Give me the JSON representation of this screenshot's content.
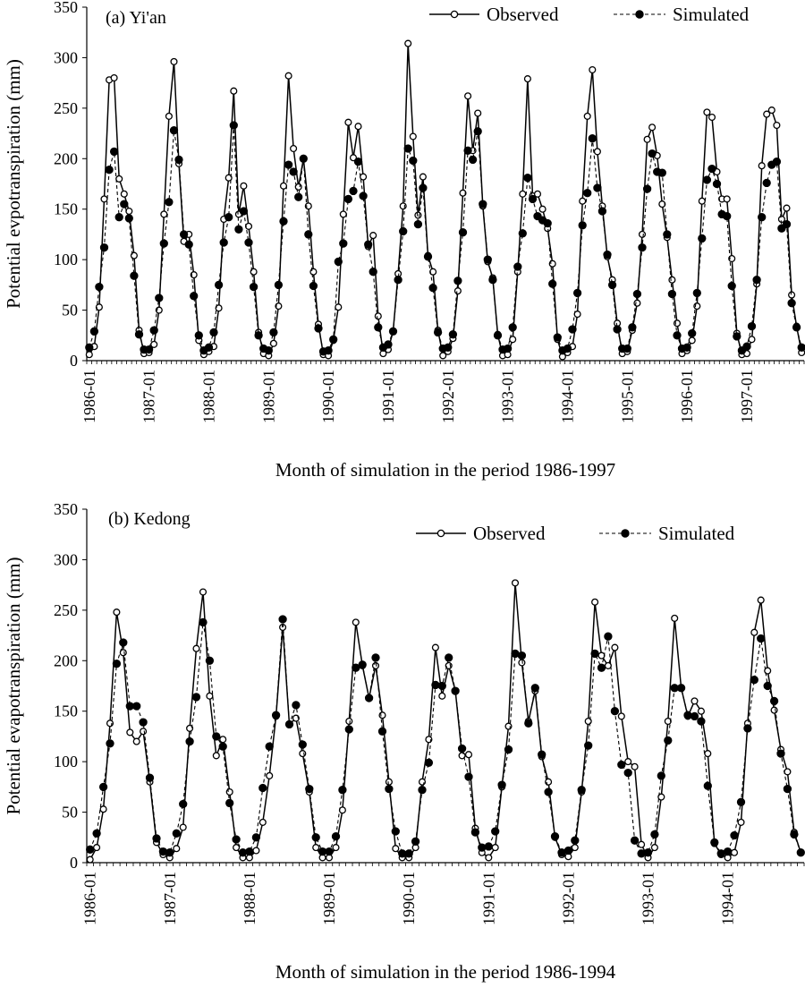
{
  "chart_data": [
    {
      "type": "line",
      "panel_label": "(a) Yi'an",
      "xlabel": "Month of simulation in the period 1986-1997",
      "ylabel": "Potential evpotranspiration (mm)",
      "ylim": [
        0,
        350
      ],
      "yticks": [
        0,
        50,
        100,
        150,
        200,
        250,
        300,
        350
      ],
      "xticks": [
        "1986-01",
        "1987-01",
        "1988-01",
        "1989-01",
        "1990-01",
        "1991-01",
        "1992-01",
        "1993-01",
        "1994-01",
        "1995-01",
        "1996-01",
        "1997-01"
      ],
      "start": "1986-01",
      "legend_position": "top-right",
      "series": [
        {
          "name": "Observed",
          "style": "solid, open circles",
          "values": [
            6,
            14,
            53,
            160,
            278,
            280,
            180,
            165,
            148,
            104,
            30,
            7,
            8,
            16,
            50,
            145,
            242,
            296,
            195,
            118,
            125,
            85,
            20,
            6,
            9,
            14,
            52,
            140,
            181,
            267,
            145,
            173,
            133,
            88,
            28,
            7,
            5,
            17,
            54,
            173,
            282,
            210,
            172,
            200,
            153,
            88,
            36,
            6,
            5,
            20,
            53,
            145,
            236,
            201,
            232,
            182,
            113,
            124,
            44,
            7,
            11,
            29,
            86,
            153,
            314,
            222,
            144,
            182,
            104,
            88,
            30,
            5,
            9,
            22,
            69,
            166,
            262,
            208,
            245,
            153,
            98,
            82,
            26,
            5,
            6,
            21,
            88,
            165,
            279,
            163,
            165,
            150,
            131,
            96,
            21,
            4,
            8,
            14,
            46,
            158,
            242,
            288,
            207,
            153,
            103,
            80,
            37,
            7,
            9,
            30,
            57,
            125,
            219,
            231,
            203,
            155,
            122,
            80,
            37,
            7,
            10,
            20,
            54,
            158,
            246,
            241,
            187,
            160,
            160,
            101,
            27,
            6,
            7,
            21,
            76,
            193,
            244,
            248,
            233,
            140,
            151,
            65,
            34,
            8
          ],
          "color": "#000000"
        },
        {
          "name": "Simulated",
          "style": "dashed, filled circles",
          "values": [
            13,
            29,
            73,
            112,
            189,
            207,
            142,
            155,
            141,
            84,
            26,
            11,
            11,
            30,
            62,
            116,
            157,
            228,
            199,
            125,
            115,
            64,
            25,
            10,
            13,
            28,
            75,
            117,
            142,
            233,
            130,
            148,
            117,
            73,
            25,
            12,
            10,
            28,
            75,
            138,
            194,
            187,
            162,
            200,
            125,
            74,
            32,
            9,
            10,
            21,
            98,
            116,
            160,
            168,
            197,
            163,
            115,
            88,
            33,
            13,
            16,
            29,
            80,
            128,
            210,
            198,
            135,
            171,
            103,
            72,
            28,
            12,
            13,
            26,
            79,
            127,
            208,
            199,
            227,
            155,
            100,
            80,
            25,
            11,
            12,
            33,
            93,
            126,
            181,
            160,
            143,
            139,
            136,
            76,
            23,
            10,
            12,
            31,
            67,
            134,
            166,
            220,
            171,
            148,
            105,
            75,
            31,
            12,
            12,
            33,
            66,
            112,
            170,
            205,
            187,
            186,
            125,
            66,
            25,
            12,
            13,
            27,
            67,
            121,
            179,
            190,
            175,
            145,
            143,
            74,
            24,
            10,
            14,
            34,
            80,
            142,
            176,
            194,
            197,
            131,
            135,
            57,
            33,
            13
          ],
          "color": "#000000"
        }
      ]
    },
    {
      "type": "line",
      "panel_label": "(b) Kedong",
      "xlabel": "Month of simulation in the period 1986-1994",
      "ylabel": "Potential evapotranspiration (mm)",
      "ylim": [
        0,
        350
      ],
      "yticks": [
        0,
        50,
        100,
        150,
        200,
        250,
        300,
        350
      ],
      "xticks": [
        "1986-01",
        "1987-01",
        "1988-01",
        "1989-01",
        "1990-01",
        "1991-01",
        "1992-01",
        "1993-01",
        "1994-01"
      ],
      "start": "1986-01",
      "legend_position": "top-right",
      "series": [
        {
          "name": "Observed",
          "style": "solid, open circles",
          "values": [
            3,
            15,
            53,
            138,
            248,
            208,
            129,
            120,
            130,
            80,
            20,
            8,
            5,
            14,
            35,
            133,
            212,
            268,
            165,
            106,
            122,
            70,
            15,
            5,
            5,
            12,
            40,
            86,
            145,
            233,
            137,
            143,
            108,
            70,
            15,
            5,
            5,
            15,
            52,
            140,
            238,
            195,
            163,
            195,
            146,
            80,
            14,
            5,
            5,
            15,
            80,
            122,
            213,
            165,
            195,
            170,
            106,
            107,
            34,
            10,
            5,
            15,
            75,
            135,
            277,
            198,
            140,
            170,
            105,
            80,
            25,
            8,
            6,
            15,
            70,
            140,
            258,
            205,
            195,
            213,
            145,
            100,
            95,
            18,
            5,
            15,
            65,
            140,
            242,
            173,
            145,
            160,
            150,
            108,
            19,
            8,
            5,
            10,
            40,
            138,
            228,
            260,
            190,
            151,
            112,
            90,
            30,
            10
          ],
          "color": "#000000"
        },
        {
          "name": "Simulated",
          "style": "dashed, filled circles",
          "values": [
            13,
            29,
            75,
            118,
            197,
            218,
            155,
            155,
            139,
            84,
            24,
            11,
            10,
            29,
            58,
            120,
            164,
            238,
            200,
            125,
            115,
            59,
            23,
            10,
            11,
            25,
            74,
            115,
            146,
            241,
            137,
            156,
            117,
            73,
            25,
            11,
            11,
            26,
            72,
            132,
            193,
            196,
            163,
            203,
            130,
            73,
            31,
            9,
            9,
            21,
            72,
            99,
            176,
            175,
            203,
            170,
            113,
            85,
            30,
            15,
            16,
            31,
            77,
            112,
            207,
            205,
            138,
            173,
            107,
            70,
            26,
            10,
            12,
            22,
            72,
            116,
            207,
            193,
            224,
            150,
            97,
            89,
            22,
            9,
            10,
            28,
            86,
            121,
            173,
            173,
            146,
            145,
            140,
            76,
            20,
            9,
            11,
            27,
            60,
            133,
            181,
            222,
            175,
            160,
            108,
            73,
            28,
            10
          ],
          "color": "#000000"
        }
      ]
    }
  ]
}
